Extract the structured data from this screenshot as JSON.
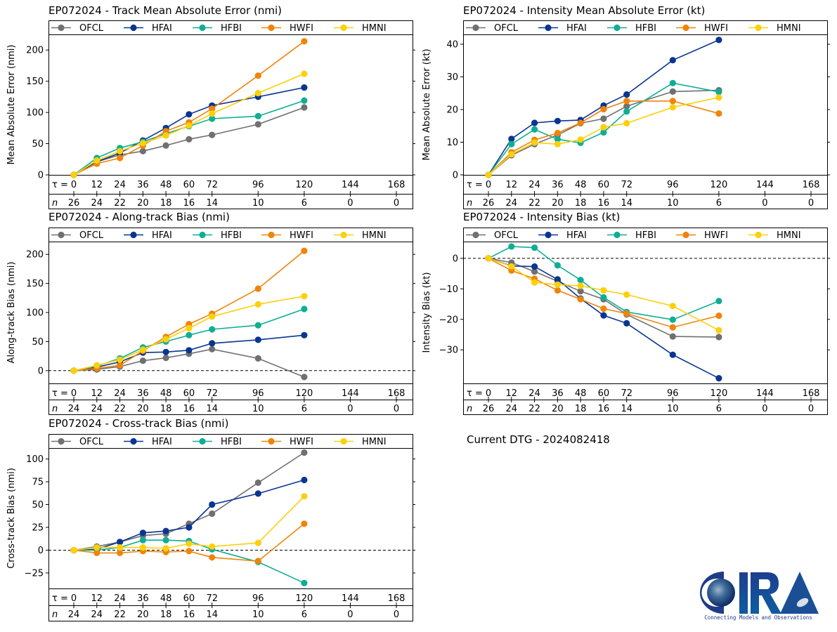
{
  "storm_id": "EP072024",
  "current_dtg_label": "Current DTG - 2024082418",
  "logo": {
    "text": "CIRA",
    "tagline": "Connecting Models and Observations"
  },
  "models": [
    {
      "name": "OFCL",
      "color": "#707070"
    },
    {
      "name": "HFAI",
      "color": "#0a3591"
    },
    {
      "name": "HFBI",
      "color": "#0fae94"
    },
    {
      "name": "HWFI",
      "color": "#f0840a"
    },
    {
      "name": "HMNI",
      "color": "#fcd00b"
    }
  ],
  "chart_data": [
    {
      "id": "track-mae",
      "type": "line",
      "title": "EP072024 - Track Mean Absolute Error (nmi)",
      "ylabel": "Mean Absolute Error (nmi)",
      "xlabel": "",
      "x": [
        0,
        12,
        24,
        36,
        48,
        60,
        72,
        96,
        120
      ],
      "x_ticks": [
        0,
        12,
        24,
        36,
        48,
        60,
        72,
        96,
        120,
        144,
        168
      ],
      "n": [
        26,
        24,
        22,
        20,
        18,
        16,
        14,
        10,
        6,
        0,
        0
      ],
      "y_ticks": [
        0,
        50,
        100,
        150,
        200
      ],
      "ylim": [
        0,
        225
      ],
      "zero_line": false,
      "legend": "top",
      "series": [
        {
          "name": "OFCL",
          "values": [
            0,
            21,
            32,
            38,
            47,
            57,
            64,
            81,
            108
          ]
        },
        {
          "name": "HFAI",
          "values": [
            0,
            21,
            35,
            55,
            75,
            97,
            111,
            125,
            140
          ]
        },
        {
          "name": "HFBI",
          "values": [
            0,
            27,
            43,
            53,
            66,
            78,
            90,
            94,
            119
          ]
        },
        {
          "name": "HWFI",
          "values": [
            0,
            18,
            27,
            47,
            70,
            84,
            106,
            159,
            214
          ]
        },
        {
          "name": "HMNI",
          "values": [
            0,
            23,
            38,
            51,
            63,
            79,
            98,
            131,
            162
          ]
        }
      ]
    },
    {
      "id": "intensity-mae",
      "type": "line",
      "title": "EP072024 - Intensity Mean Absolute Error (kt)",
      "ylabel": "Mean Absolute Error (kt)",
      "xlabel": "",
      "x": [
        0,
        12,
        24,
        36,
        48,
        60,
        72,
        96,
        120
      ],
      "x_ticks": [
        0,
        12,
        24,
        36,
        48,
        60,
        72,
        96,
        120,
        144,
        168
      ],
      "n": [
        26,
        24,
        22,
        20,
        18,
        16,
        14,
        10,
        6,
        0,
        0
      ],
      "y_ticks": [
        0,
        10,
        20,
        30,
        40
      ],
      "ylim": [
        0,
        43
      ],
      "zero_line": false,
      "legend": "top",
      "series": [
        {
          "name": "OFCL",
          "values": [
            0,
            6.0,
            9.4,
            12.2,
            15.8,
            17.2,
            21.0,
            25.5,
            25.9
          ]
        },
        {
          "name": "HFAI",
          "values": [
            0,
            11.0,
            15.9,
            16.5,
            16.8,
            21.2,
            24.6,
            35.1,
            41.3
          ]
        },
        {
          "name": "HFBI",
          "values": [
            0,
            9.4,
            13.9,
            10.9,
            9.8,
            13.0,
            19.4,
            28.1,
            25.4
          ]
        },
        {
          "name": "HWFI",
          "values": [
            0,
            6.9,
            10.7,
            12.8,
            15.9,
            20.1,
            22.6,
            22.6,
            18.8
          ]
        },
        {
          "name": "HMNI",
          "values": [
            0,
            6.3,
            9.9,
            9.4,
            10.8,
            14.6,
            15.8,
            20.7,
            23.7
          ]
        }
      ]
    },
    {
      "id": "along-track-bias",
      "type": "line",
      "title": "EP072024 - Along-track Bias (nmi)",
      "ylabel": "Along-track Bias (nmi)",
      "xlabel": "",
      "x": [
        0,
        12,
        24,
        36,
        48,
        60,
        72,
        96,
        120
      ],
      "x_ticks": [
        0,
        12,
        24,
        36,
        48,
        60,
        72,
        96,
        120,
        144,
        168
      ],
      "n": [
        24,
        24,
        22,
        20,
        18,
        16,
        14,
        10,
        6,
        0,
        0
      ],
      "y_ticks": [
        0,
        50,
        100,
        150,
        200
      ],
      "ylim": [
        -22,
        222
      ],
      "zero_line": true,
      "legend": "top",
      "series": [
        {
          "name": "OFCL",
          "values": [
            0,
            2,
            7,
            17,
            22,
            29,
            37,
            21,
            -11
          ]
        },
        {
          "name": "HFAI",
          "values": [
            0,
            6,
            15,
            31,
            32,
            35,
            47,
            53,
            61
          ]
        },
        {
          "name": "HFBI",
          "values": [
            0,
            8,
            21,
            40,
            50,
            61,
            71,
            78,
            106
          ]
        },
        {
          "name": "HWFI",
          "values": [
            0,
            4,
            9,
            34,
            58,
            80,
            98,
            141,
            206
          ]
        },
        {
          "name": "HMNI",
          "values": [
            0,
            9,
            19,
            36,
            54,
            73,
            93,
            114,
            128
          ]
        }
      ]
    },
    {
      "id": "intensity-bias",
      "type": "line",
      "title": "EP072024 - Intensity Bias (kt)",
      "ylabel": "Intensity Bias (kt)",
      "xlabel": "",
      "x": [
        0,
        12,
        24,
        36,
        48,
        60,
        72,
        96,
        120
      ],
      "x_ticks": [
        0,
        12,
        24,
        36,
        48,
        60,
        72,
        96,
        120,
        144,
        168
      ],
      "n": [
        26,
        24,
        22,
        20,
        18,
        16,
        14,
        10,
        6,
        0,
        0
      ],
      "y_ticks": [
        0,
        -10,
        -20,
        -30
      ],
      "ylim": [
        -41,
        5.5
      ],
      "zero_line": true,
      "legend": "top",
      "series": [
        {
          "name": "OFCL",
          "values": [
            0,
            -1.4,
            -4.3,
            -7.5,
            -10.8,
            -13.4,
            -18.4,
            -25.6,
            -25.8
          ]
        },
        {
          "name": "HFAI",
          "values": [
            0,
            -2.5,
            -2.7,
            -6.9,
            -13.2,
            -18.7,
            -21.3,
            -31.6,
            -39.3
          ]
        },
        {
          "name": "HFBI",
          "values": [
            0,
            3.9,
            3.5,
            -2.3,
            -7.1,
            -12.8,
            -17.6,
            -20.1,
            -14.0
          ]
        },
        {
          "name": "HWFI",
          "values": [
            0,
            -4.0,
            -6.7,
            -10.5,
            -13.4,
            -16.5,
            -18.1,
            -22.6,
            -18.8
          ]
        },
        {
          "name": "HMNI",
          "values": [
            0,
            -2.6,
            -7.9,
            -8.6,
            -9.0,
            -10.5,
            -11.9,
            -15.6,
            -23.6
          ]
        }
      ]
    },
    {
      "id": "cross-track-bias",
      "type": "line",
      "title": "EP072024 - Cross-track Bias (nmi)",
      "ylabel": "Cross-track Bias (nmi)",
      "xlabel": "",
      "x": [
        0,
        12,
        24,
        36,
        48,
        60,
        72,
        96,
        120
      ],
      "x_ticks": [
        0,
        12,
        24,
        36,
        48,
        60,
        72,
        96,
        120,
        144,
        168
      ],
      "n": [
        24,
        24,
        22,
        20,
        18,
        16,
        14,
        10,
        6,
        0,
        0
      ],
      "y_ticks": [
        -25,
        0,
        25,
        50,
        75,
        100
      ],
      "ylim": [
        -42,
        112
      ],
      "zero_line": true,
      "legend": "top",
      "series": [
        {
          "name": "OFCL",
          "values": [
            0,
            4,
            9,
            16,
            18,
            29,
            40,
            74,
            107
          ]
        },
        {
          "name": "HFAI",
          "values": [
            0,
            1,
            9,
            19,
            21,
            25,
            50,
            62,
            77
          ]
        },
        {
          "name": "HFBI",
          "values": [
            0,
            0,
            3,
            11,
            11,
            10,
            1,
            -13,
            -36
          ]
        },
        {
          "name": "HWFI",
          "values": [
            0,
            -3,
            -3,
            -1,
            -2,
            -1,
            -8,
            -12,
            29
          ]
        },
        {
          "name": "HMNI",
          "values": [
            0,
            3,
            3,
            3,
            2,
            7,
            4,
            8,
            59
          ]
        }
      ]
    }
  ]
}
